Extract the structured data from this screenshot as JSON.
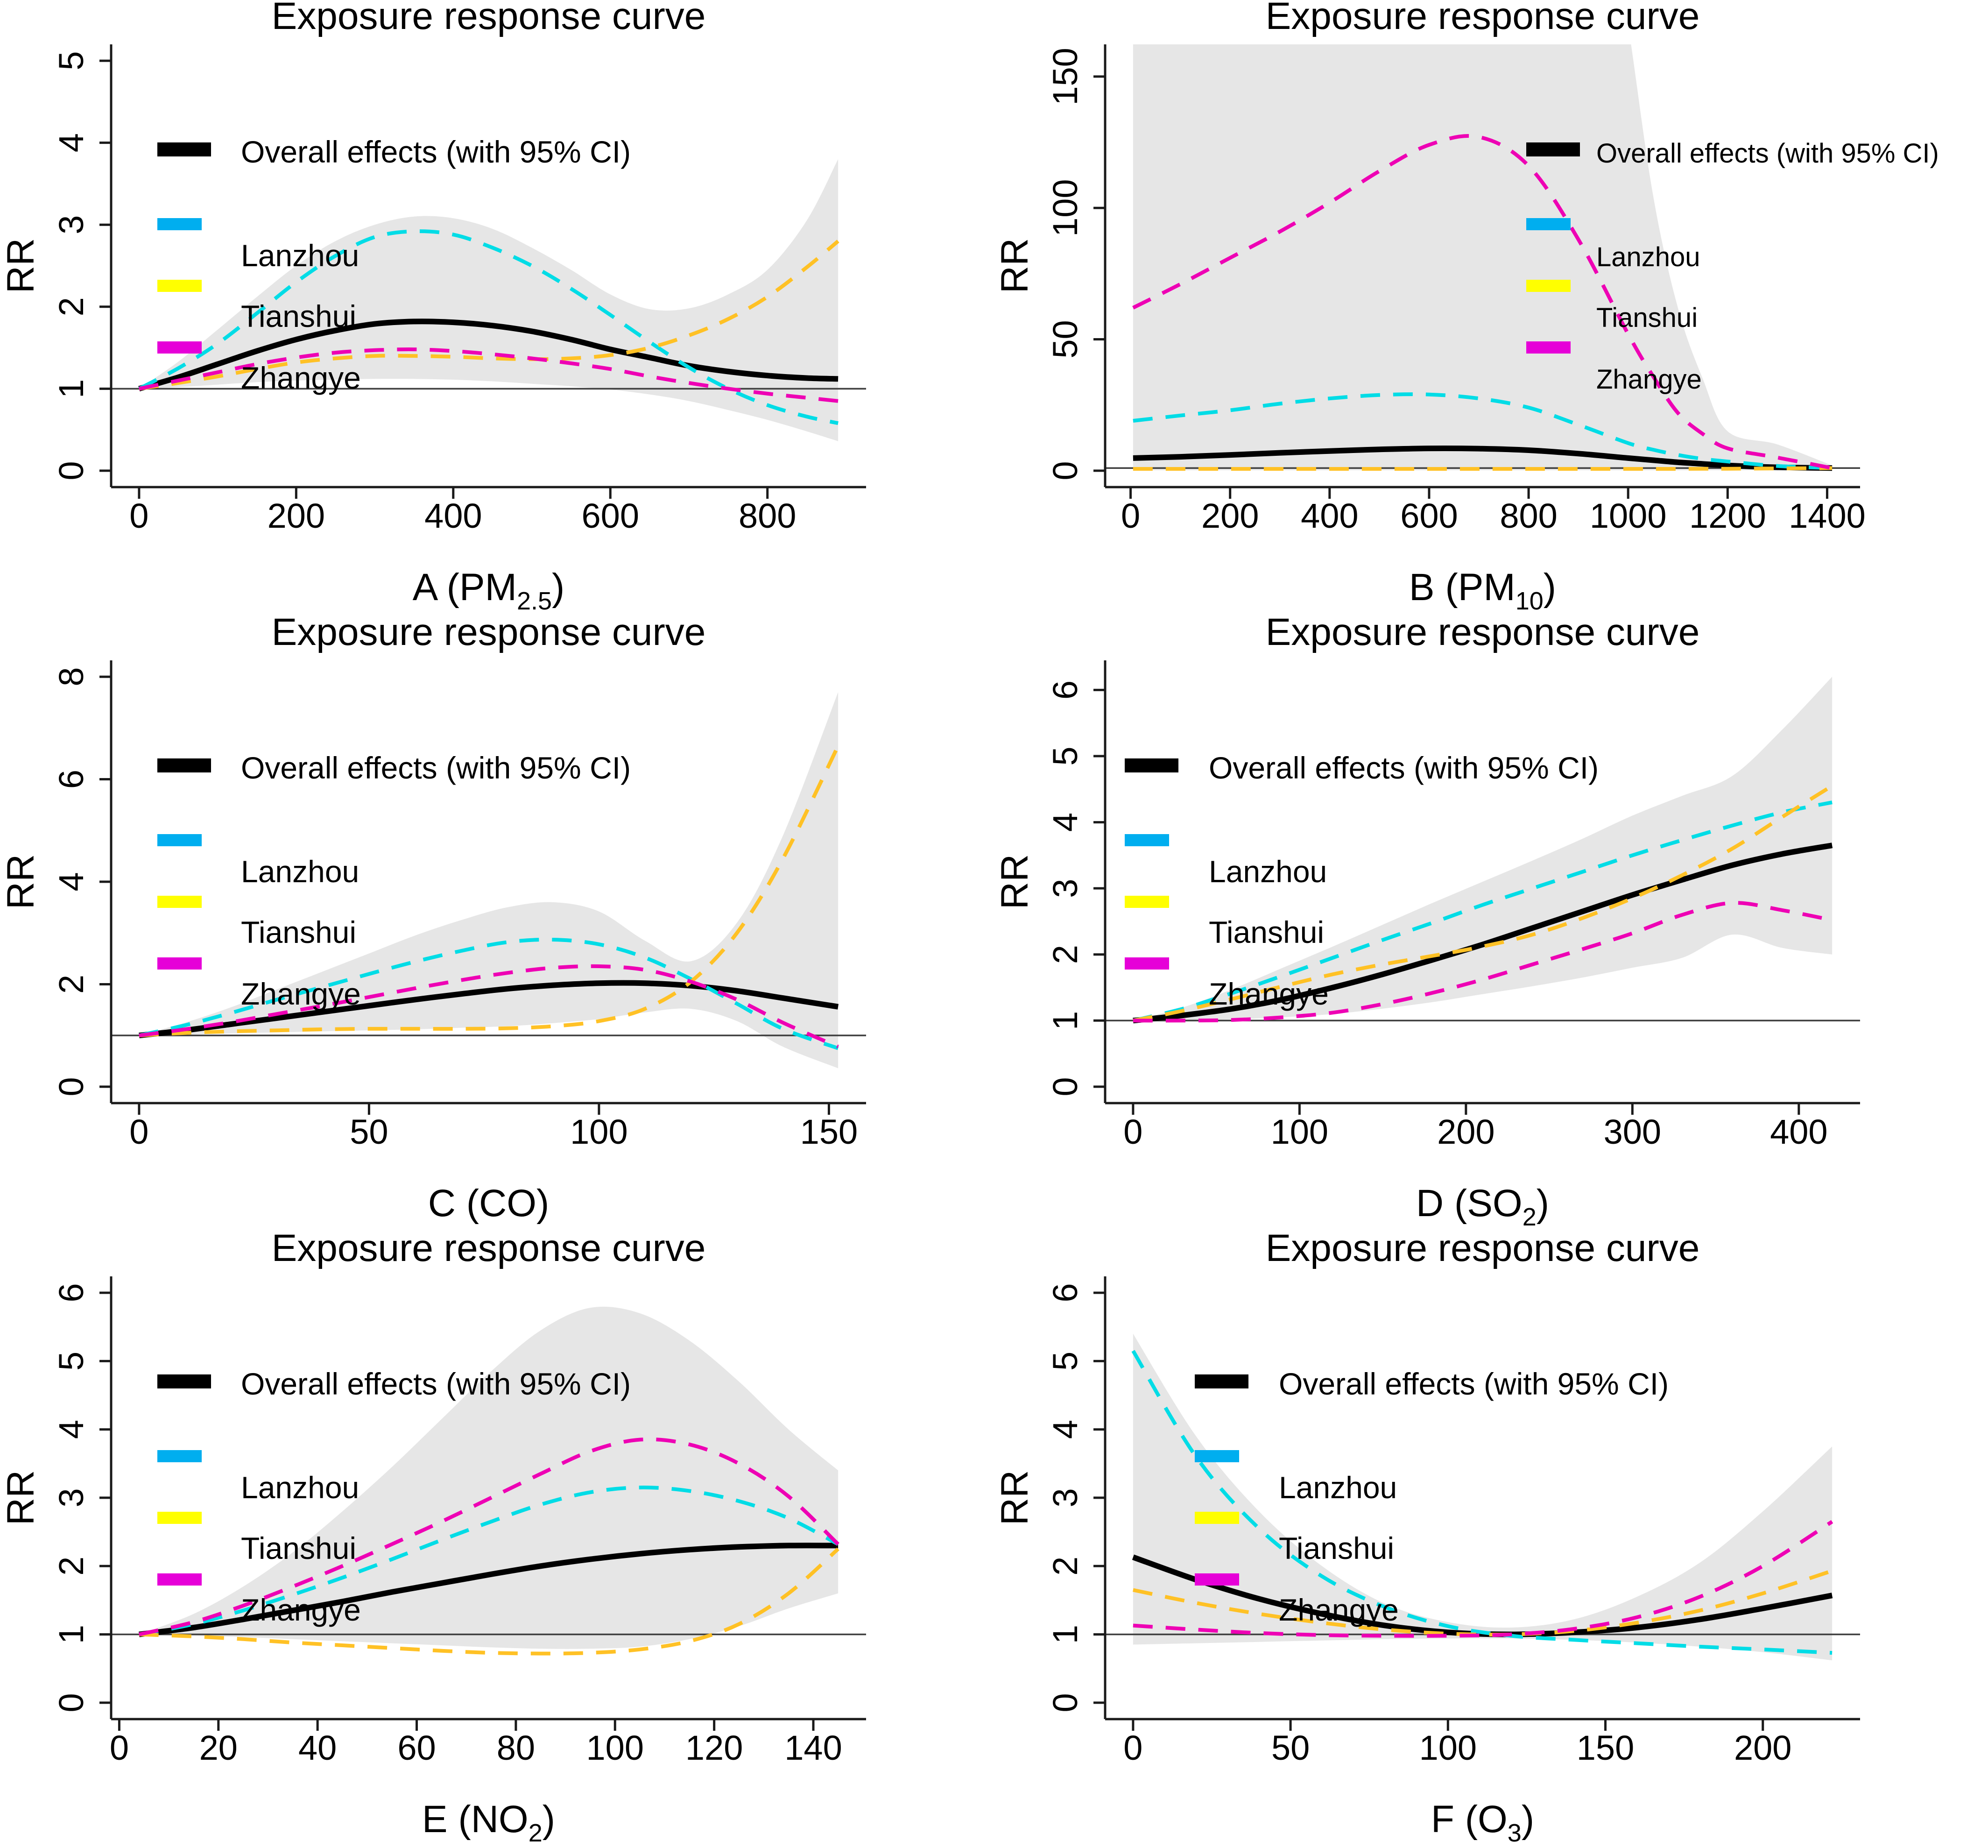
{
  "figure": {
    "panel_title": "Exposure response curve",
    "y_axis_label": "RR",
    "colors": {
      "band": "#E6E6E6",
      "axis": "#1a1a1a",
      "reference_line": "#3F3F3F",
      "overall": "#000000",
      "lanzhou_line": "#00DCE6",
      "lanzhou_swatch": "#00AEEF",
      "tianshui_line": "#FFC125",
      "tianshui_swatch": "#FFFF00",
      "zhangye_line": "#EE00B4",
      "zhangye_swatch": "#E600D8"
    },
    "legend": {
      "entries": [
        {
          "key": "overall",
          "label": "Overall effects (with 95% CI)"
        },
        {
          "key": "lanzhou",
          "label": "Lanzhou"
        },
        {
          "key": "tianshui",
          "label": "Tianshui"
        },
        {
          "key": "zhangye",
          "label": "Zhangye"
        }
      ]
    }
  },
  "chart_data": [
    {
      "type": "line",
      "id": "A",
      "title": "Exposure response curve",
      "xlabel": [
        {
          "t": "A (PM"
        },
        {
          "t": "2.5",
          "sub": true
        },
        {
          "t": ")"
        }
      ],
      "ylabel": "RR",
      "xlim": [
        0,
        890
      ],
      "ylim": [
        0,
        5
      ],
      "xticks": [
        0,
        200,
        400,
        600,
        800
      ],
      "yticks": [
        0,
        1,
        2,
        3,
        4,
        5
      ],
      "ref_y": 1,
      "legend_pos": {
        "x": 337,
        "text_x": 516,
        "font": 66
      },
      "x": [
        0,
        50,
        100,
        150,
        200,
        250,
        300,
        350,
        400,
        450,
        500,
        550,
        600,
        650,
        700,
        750,
        800,
        850,
        890
      ],
      "band": {
        "lower": [
          1,
          1.02,
          1.05,
          1.08,
          1.1,
          1.11,
          1.12,
          1.12,
          1.11,
          1.09,
          1.06,
          1.03,
          0.99,
          0.93,
          0.85,
          0.74,
          0.62,
          0.48,
          0.36
        ],
        "upper": [
          1,
          1.33,
          1.72,
          2.12,
          2.5,
          2.8,
          3.0,
          3.1,
          3.08,
          2.95,
          2.72,
          2.45,
          2.15,
          1.97,
          1.98,
          2.15,
          2.45,
          3.05,
          3.8
        ]
      },
      "series": {
        "overall": [
          1,
          1.14,
          1.3,
          1.46,
          1.6,
          1.71,
          1.79,
          1.82,
          1.81,
          1.77,
          1.7,
          1.6,
          1.48,
          1.38,
          1.28,
          1.21,
          1.16,
          1.13,
          1.12
        ],
        "lanzhou": [
          1,
          1.25,
          1.55,
          1.92,
          2.3,
          2.62,
          2.85,
          2.92,
          2.88,
          2.72,
          2.5,
          2.22,
          1.9,
          1.57,
          1.26,
          1.0,
          0.8,
          0.66,
          0.58
        ],
        "tianshui": [
          1,
          1.07,
          1.15,
          1.24,
          1.32,
          1.37,
          1.4,
          1.4,
          1.39,
          1.37,
          1.36,
          1.37,
          1.41,
          1.5,
          1.65,
          1.85,
          2.12,
          2.48,
          2.8
        ],
        "zhangye": [
          1,
          1.1,
          1.2,
          1.3,
          1.38,
          1.44,
          1.47,
          1.48,
          1.46,
          1.42,
          1.37,
          1.31,
          1.24,
          1.15,
          1.07,
          1.0,
          0.94,
          0.89,
          0.85
        ]
      }
    },
    {
      "type": "line",
      "id": "B",
      "title": "Exposure response curve",
      "xlabel": [
        {
          "t": "B (PM"
        },
        {
          "t": "10",
          "sub": true
        },
        {
          "t": ")"
        }
      ],
      "ylabel": "RR",
      "xlim": [
        5,
        1410
      ],
      "ylim": [
        0,
        156
      ],
      "xticks": [
        0,
        200,
        400,
        600,
        800,
        1000,
        1200,
        1400
      ],
      "yticks": [
        0,
        50,
        100,
        150
      ],
      "ref_y": 1,
      "legend_pos": {
        "x": 1140,
        "text_x": 1290,
        "font": 58
      },
      "x": [
        5,
        100,
        200,
        300,
        400,
        500,
        600,
        700,
        800,
        900,
        1000,
        1050,
        1100,
        1150,
        1200,
        1300,
        1410
      ],
      "band": {
        "lower": [
          0.15,
          0.15,
          0.15,
          0.15,
          0.15,
          0.15,
          0.15,
          0.15,
          0.15,
          0.15,
          0.15,
          0.15,
          0.15,
          0.15,
          0.15,
          0.15,
          0.15
        ],
        "upper": [
          300,
          300,
          300,
          300,
          300,
          300,
          300,
          300,
          300,
          300,
          170,
          105,
          62,
          35,
          15,
          10,
          2
        ]
      },
      "series": {
        "overall": [
          4.8,
          5.3,
          6.0,
          6.8,
          7.5,
          8.1,
          8.5,
          8.4,
          7.8,
          6.5,
          4.8,
          4.0,
          3.2,
          2.6,
          2.0,
          1.3,
          1.0
        ],
        "lanzhou": [
          19,
          21,
          23,
          25.5,
          27.5,
          28.8,
          29,
          27.5,
          24,
          17.5,
          10.5,
          8,
          6,
          4.5,
          3.5,
          1.8,
          1.0
        ],
        "tianshui": [
          0.7,
          0.7,
          0.7,
          0.7,
          0.7,
          0.7,
          0.7,
          0.7,
          0.7,
          0.7,
          0.7,
          0.7,
          0.7,
          0.72,
          0.75,
          0.85,
          1.0
        ],
        "zhangye": [
          62,
          71,
          81,
          91,
          102,
          114,
          124,
          127,
          116,
          88,
          52,
          36,
          22,
          14,
          8.5,
          5,
          1.0
        ]
      }
    },
    {
      "type": "line",
      "id": "C",
      "title": "Exposure response curve",
      "xlabel": [
        {
          "t": "C (CO)"
        }
      ],
      "ylabel": "RR",
      "xlim": [
        0,
        152
      ],
      "ylim": [
        0,
        8
      ],
      "xticks": [
        0,
        50,
        100,
        150
      ],
      "yticks": [
        0,
        2,
        4,
        6,
        8
      ],
      "ref_y": 1,
      "legend_pos": {
        "x": 337,
        "text_x": 516,
        "font": 66
      },
      "x": [
        0,
        10,
        20,
        30,
        40,
        50,
        60,
        70,
        80,
        90,
        100,
        110,
        120,
        130,
        140,
        152
      ],
      "band": {
        "lower": [
          1,
          1.02,
          1.04,
          1.06,
          1.08,
          1.1,
          1.12,
          1.15,
          1.18,
          1.24,
          1.32,
          1.45,
          1.52,
          1.28,
          0.78,
          0.36
        ],
        "upper": [
          1,
          1.25,
          1.55,
          1.9,
          2.25,
          2.6,
          2.95,
          3.25,
          3.5,
          3.6,
          3.42,
          2.85,
          2.45,
          3.2,
          4.9,
          7.7
        ]
      },
      "series": {
        "overall": [
          1,
          1.1,
          1.22,
          1.34,
          1.46,
          1.58,
          1.7,
          1.81,
          1.91,
          1.98,
          2.02,
          2.02,
          1.97,
          1.87,
          1.73,
          1.56
        ],
        "lanzhou": [
          1,
          1.2,
          1.44,
          1.7,
          1.95,
          2.2,
          2.44,
          2.65,
          2.82,
          2.87,
          2.78,
          2.52,
          2.1,
          1.62,
          1.13,
          0.75
        ],
        "tianshui": [
          1,
          1.05,
          1.08,
          1.1,
          1.12,
          1.13,
          1.13,
          1.13,
          1.14,
          1.18,
          1.28,
          1.52,
          2.05,
          3.0,
          4.45,
          6.65
        ],
        "zhangye": [
          1,
          1.12,
          1.26,
          1.42,
          1.58,
          1.75,
          1.92,
          2.08,
          2.22,
          2.32,
          2.35,
          2.28,
          2.05,
          1.7,
          1.25,
          0.78
        ]
      }
    },
    {
      "type": "line",
      "id": "D",
      "title": "Exposure response curve",
      "xlabel": [
        {
          "t": "D (SO"
        },
        {
          "t": "2",
          "sub": true
        },
        {
          "t": ")"
        }
      ],
      "ylabel": "RR",
      "xlim": [
        0,
        420
      ],
      "ylim": [
        0,
        6.2
      ],
      "xticks": [
        0,
        100,
        200,
        300,
        400
      ],
      "yticks": [
        0,
        1,
        2,
        3,
        4,
        5,
        6
      ],
      "ref_y": 1,
      "legend_pos": {
        "x": 280,
        "text_x": 460,
        "font": 66
      },
      "x": [
        0,
        30,
        60,
        90,
        120,
        150,
        180,
        210,
        240,
        270,
        300,
        330,
        360,
        390,
        420
      ],
      "band": {
        "lower": [
          1,
          1.0,
          1.02,
          1.05,
          1.1,
          1.18,
          1.28,
          1.4,
          1.52,
          1.65,
          1.8,
          1.95,
          2.3,
          2.1,
          2.0
        ],
        "upper": [
          1,
          1.2,
          1.48,
          1.8,
          2.12,
          2.45,
          2.78,
          3.1,
          3.42,
          3.75,
          4.1,
          4.4,
          4.7,
          5.4,
          6.2
        ]
      },
      "series": {
        "overall": [
          1,
          1.08,
          1.18,
          1.32,
          1.5,
          1.7,
          1.92,
          2.15,
          2.4,
          2.65,
          2.9,
          3.13,
          3.35,
          3.52,
          3.65
        ],
        "lanzhou": [
          1,
          1.18,
          1.42,
          1.68,
          1.95,
          2.22,
          2.48,
          2.75,
          3.0,
          3.25,
          3.5,
          3.73,
          3.95,
          4.15,
          4.3
        ],
        "tianshui": [
          1,
          1.15,
          1.33,
          1.52,
          1.7,
          1.85,
          1.98,
          2.12,
          2.3,
          2.55,
          2.85,
          3.2,
          3.6,
          4.08,
          4.55
        ],
        "zhangye": [
          1,
          1.0,
          1.01,
          1.05,
          1.12,
          1.25,
          1.42,
          1.62,
          1.85,
          2.08,
          2.32,
          2.6,
          2.78,
          2.67,
          2.52
        ]
      }
    },
    {
      "type": "line",
      "id": "E",
      "title": "Exposure response curve",
      "xlabel": [
        {
          "t": "E (NO"
        },
        {
          "t": "2",
          "sub": true
        },
        {
          "t": ")"
        }
      ],
      "ylabel": "RR",
      "xlim": [
        4,
        145
      ],
      "ylim": [
        0,
        6
      ],
      "xticks": [
        0,
        20,
        40,
        60,
        80,
        100,
        120,
        140
      ],
      "yticks": [
        0,
        1,
        2,
        3,
        4,
        5,
        6
      ],
      "ref_y": 1,
      "legend_pos": {
        "x": 337,
        "text_x": 516,
        "font": 66
      },
      "x": [
        4,
        15,
        25,
        35,
        45,
        55,
        65,
        75,
        85,
        95,
        105,
        115,
        125,
        135,
        145
      ],
      "band": {
        "lower": [
          1,
          0.98,
          0.96,
          0.93,
          0.9,
          0.87,
          0.84,
          0.81,
          0.79,
          0.79,
          0.82,
          0.93,
          1.12,
          1.38,
          1.6
        ],
        "upper": [
          1,
          1.3,
          1.7,
          2.2,
          2.8,
          3.45,
          4.15,
          4.85,
          5.45,
          5.78,
          5.7,
          5.3,
          4.7,
          4.0,
          3.4
        ]
      },
      "series": {
        "overall": [
          1,
          1.1,
          1.22,
          1.35,
          1.48,
          1.62,
          1.75,
          1.88,
          2.0,
          2.1,
          2.18,
          2.24,
          2.28,
          2.3,
          2.3
        ],
        "lanzhou": [
          1,
          1.15,
          1.35,
          1.58,
          1.83,
          2.1,
          2.38,
          2.65,
          2.9,
          3.08,
          3.15,
          3.1,
          2.95,
          2.7,
          2.32
        ],
        "tianshui": [
          1,
          0.97,
          0.93,
          0.88,
          0.84,
          0.8,
          0.76,
          0.73,
          0.72,
          0.73,
          0.78,
          0.9,
          1.15,
          1.6,
          2.25
        ],
        "zhangye": [
          1,
          1.18,
          1.42,
          1.7,
          2.0,
          2.32,
          2.65,
          3.0,
          3.35,
          3.68,
          3.85,
          3.78,
          3.5,
          3.02,
          2.32
        ]
      }
    },
    {
      "type": "line",
      "id": "F",
      "title": "Exposure response curve",
      "xlabel": [
        {
          "t": "F (O"
        },
        {
          "t": "3",
          "sub": true
        },
        {
          "t": ")"
        }
      ],
      "ylabel": "RR",
      "xlim": [
        0,
        222
      ],
      "ylim": [
        0,
        6
      ],
      "xticks": [
        0,
        50,
        100,
        150,
        200
      ],
      "yticks": [
        0,
        1,
        2,
        3,
        4,
        5,
        6
      ],
      "ref_y": 1,
      "legend_pos": {
        "x": 430,
        "text_x": 610,
        "font": 66
      },
      "x": [
        0,
        20,
        40,
        60,
        80,
        100,
        120,
        140,
        160,
        180,
        200,
        222
      ],
      "band": {
        "lower": [
          0.85,
          0.87,
          0.89,
          0.91,
          0.93,
          0.94,
          0.94,
          0.92,
          0.88,
          0.82,
          0.74,
          0.62
        ],
        "upper": [
          5.4,
          3.9,
          2.8,
          2.0,
          1.45,
          1.18,
          1.1,
          1.22,
          1.55,
          2.05,
          2.8,
          3.75
        ]
      },
      "series": {
        "overall": [
          2.13,
          1.8,
          1.52,
          1.3,
          1.13,
          1.03,
          1.0,
          1.03,
          1.1,
          1.22,
          1.38,
          1.57
        ],
        "lanzhou": [
          5.15,
          3.6,
          2.55,
          1.85,
          1.4,
          1.12,
          0.98,
          0.92,
          0.87,
          0.82,
          0.78,
          0.73
        ],
        "tianshui": [
          1.65,
          1.46,
          1.3,
          1.17,
          1.07,
          1.01,
          1.0,
          1.05,
          1.17,
          1.35,
          1.6,
          1.93
        ],
        "zhangye": [
          1.13,
          1.07,
          1.02,
          0.99,
          0.98,
          0.98,
          1.0,
          1.08,
          1.25,
          1.55,
          2.0,
          2.65
        ]
      }
    }
  ]
}
